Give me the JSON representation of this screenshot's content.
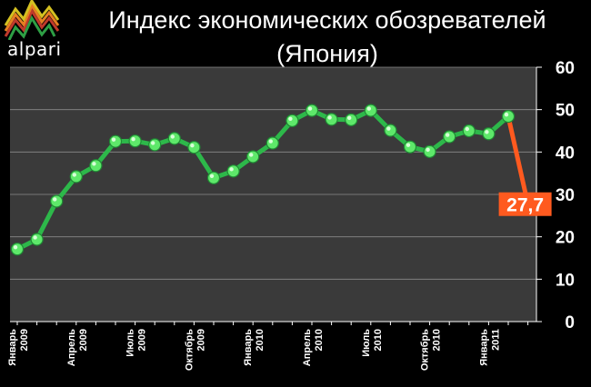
{
  "logo": {
    "text": "alpari"
  },
  "chart_data": {
    "type": "line",
    "title": "Индекс экономических обозревателей",
    "subtitle": "(Япония)",
    "ylim": [
      0,
      60
    ],
    "yticks": [
      0,
      10,
      20,
      30,
      40,
      50,
      60
    ],
    "grid": true,
    "x": [
      "2009-01",
      "2009-02",
      "2009-03",
      "2009-04",
      "2009-05",
      "2009-06",
      "2009-07",
      "2009-08",
      "2009-09",
      "2009-10",
      "2009-11",
      "2009-12",
      "2010-01",
      "2010-02",
      "2010-03",
      "2010-04",
      "2010-05",
      "2010-06",
      "2010-07",
      "2010-08",
      "2010-09",
      "2010-10",
      "2010-11",
      "2010-12",
      "2011-01",
      "2011-02",
      "2011-03"
    ],
    "xtick_labels": [
      {
        "index": 0,
        "month": "Январь",
        "year": "2009"
      },
      {
        "index": 3,
        "month": "Апрель",
        "year": "2009"
      },
      {
        "index": 6,
        "month": "Июль",
        "year": "2009"
      },
      {
        "index": 9,
        "month": "Октябрь",
        "year": "2009"
      },
      {
        "index": 12,
        "month": "Январь",
        "year": "2010"
      },
      {
        "index": 15,
        "month": "Апрель",
        "year": "2010"
      },
      {
        "index": 18,
        "month": "Июль",
        "year": "2010"
      },
      {
        "index": 21,
        "month": "Октябрь",
        "year": "2010"
      },
      {
        "index": 24,
        "month": "Январь",
        "year": "2011"
      }
    ],
    "series": [
      {
        "color": "#2db84a",
        "values": [
          17.1,
          19.4,
          28.4,
          34.2,
          36.8,
          42.5,
          42.6,
          41.7,
          43.2,
          41.1,
          33.9,
          35.5,
          38.9,
          42.1,
          47.4,
          49.8,
          47.7,
          47.6,
          49.8,
          45.1,
          41.2,
          40.1,
          43.6,
          45.0,
          44.3,
          48.4,
          27.7
        ]
      }
    ],
    "highlight": {
      "index": 26,
      "label": "27,7",
      "color": "#ff5a1f"
    }
  }
}
